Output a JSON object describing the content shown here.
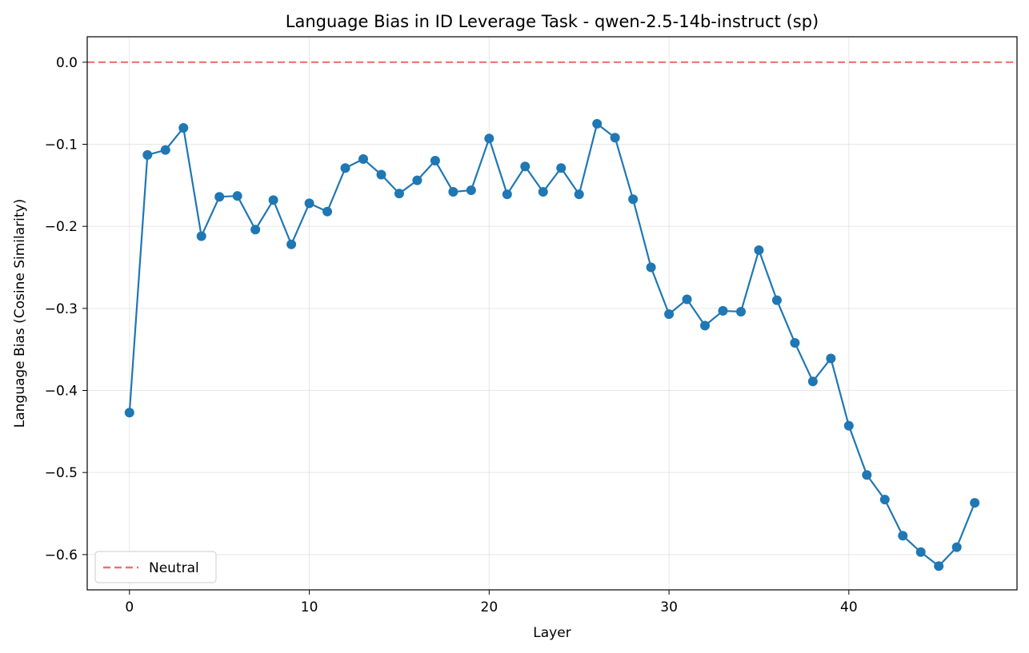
{
  "chart_data": {
    "type": "line",
    "title": "Language Bias in ID Leverage Task - qwen-2.5-14b-instruct (sp)",
    "xlabel": "Layer",
    "ylabel": "Language Bias (Cosine Similarity)",
    "xlim": [
      -2.35,
      49.35
    ],
    "ylim": [
      -0.643,
      0.031
    ],
    "xticks": [
      0,
      10,
      20,
      30,
      40
    ],
    "xtick_labels": [
      "0",
      "10",
      "20",
      "30",
      "40"
    ],
    "yticks": [
      0.0,
      -0.1,
      -0.2,
      -0.3,
      -0.4,
      -0.5,
      -0.6
    ],
    "ytick_labels": [
      "0.0",
      "−0.1",
      "−0.2",
      "−0.3",
      "−0.4",
      "−0.5",
      "−0.6"
    ],
    "grid": true,
    "legend_position": "lower-left",
    "series": [
      {
        "name": "",
        "color": "#1f77b4",
        "marker": "circle",
        "x": [
          0,
          1,
          2,
          3,
          4,
          5,
          6,
          7,
          8,
          9,
          10,
          11,
          12,
          13,
          14,
          15,
          16,
          17,
          18,
          19,
          20,
          21,
          22,
          23,
          24,
          25,
          26,
          27,
          28,
          29,
          30,
          31,
          32,
          33,
          34,
          35,
          36,
          37,
          38,
          39,
          40,
          41,
          42,
          43,
          44,
          45,
          46,
          47
        ],
        "values": [
          -0.427,
          -0.113,
          -0.107,
          -0.08,
          -0.212,
          -0.164,
          -0.163,
          -0.204,
          -0.168,
          -0.222,
          -0.172,
          -0.182,
          -0.129,
          -0.118,
          -0.137,
          -0.16,
          -0.144,
          -0.12,
          -0.158,
          -0.156,
          -0.093,
          -0.161,
          -0.127,
          -0.158,
          -0.129,
          -0.161,
          -0.075,
          -0.092,
          -0.167,
          -0.25,
          -0.307,
          -0.289,
          -0.321,
          -0.303,
          -0.304,
          -0.229,
          -0.29,
          -0.342,
          -0.389,
          -0.361,
          -0.443,
          -0.503,
          -0.533,
          -0.577,
          -0.597,
          -0.614,
          -0.591,
          -0.537
        ]
      }
    ],
    "reference_lines": [
      {
        "name": "Neutral",
        "y": 0.0,
        "color": "#f07070",
        "style": "dashed"
      }
    ]
  }
}
